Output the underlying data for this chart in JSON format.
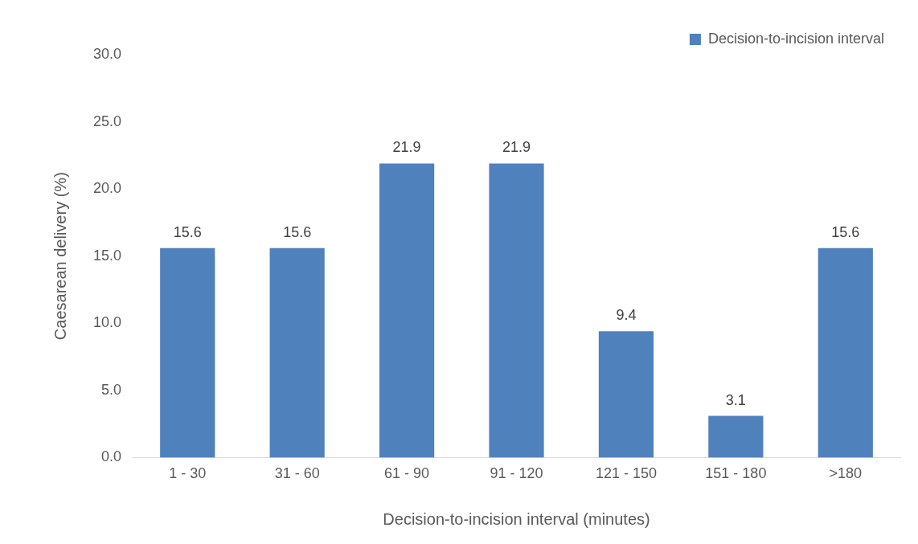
{
  "chart_data": {
    "type": "bar",
    "xlabel": "Decision-to-incision interval (minutes)",
    "ylabel": "Caesarean delivery (%)",
    "categories": [
      "1 - 30",
      "31 - 60",
      "61 - 90",
      "91 - 120",
      "121 - 150",
      "151 - 180",
      ">180"
    ],
    "series": [
      {
        "name": "Decision-to-incision interval",
        "color": "#4f81bd",
        "values": [
          15.6,
          15.6,
          21.9,
          21.9,
          9.4,
          3.1,
          15.6
        ]
      }
    ],
    "ylim": [
      0,
      30
    ],
    "yticks": [
      {
        "value": 0,
        "label": "0.0"
      },
      {
        "value": 5,
        "label": "5.0"
      },
      {
        "value": 10,
        "label": "10.0"
      },
      {
        "value": 15,
        "label": "15.0"
      },
      {
        "value": 20,
        "label": "20.0"
      },
      {
        "value": 25,
        "label": "25.0"
      },
      {
        "value": 30,
        "label": "30.0"
      }
    ],
    "grid": false,
    "legend": "top right",
    "data_labels": true
  }
}
